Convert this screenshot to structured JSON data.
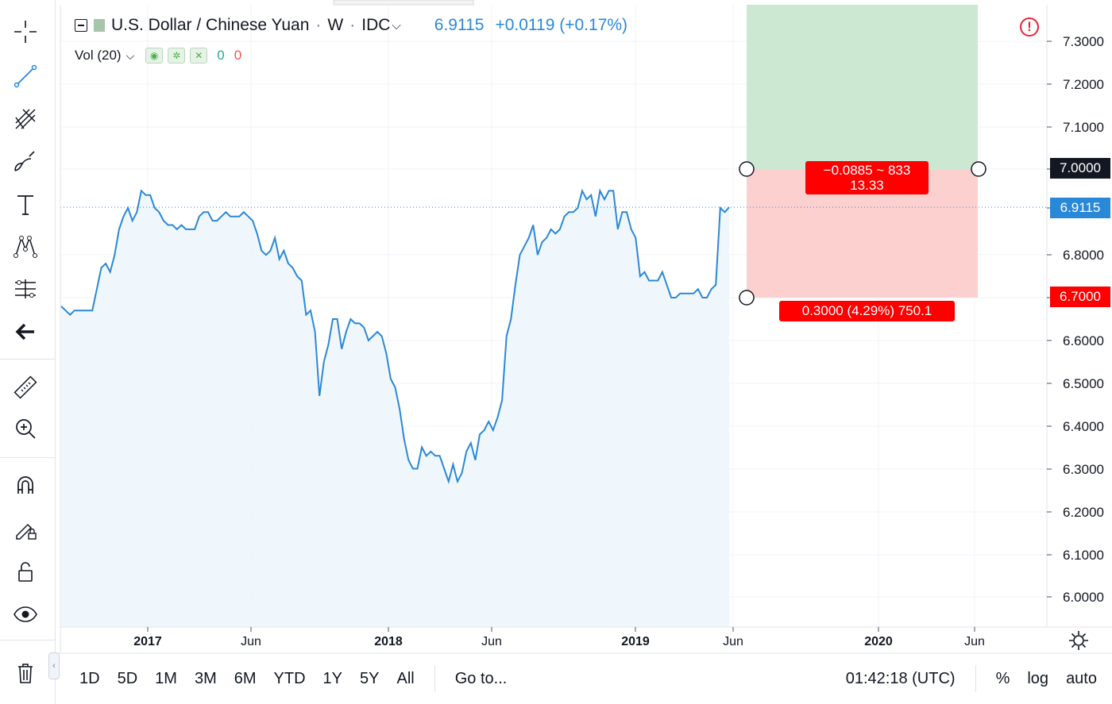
{
  "symbol": {
    "title": "U.S. Dollar / Chinese Yuan",
    "interval": "W",
    "exchange": "IDC",
    "price": "6.9115",
    "change": "+0.0119 (+0.17%)"
  },
  "volume": {
    "label": "Vol (20)",
    "value_up": "0",
    "value_down": "0"
  },
  "colors": {
    "line": "#2a88d8",
    "profit": "#cde8d2",
    "loss": "#fdd0d0",
    "badge": "#ff0000",
    "up": "#26a69a",
    "down": "#ef5350"
  },
  "tools": [
    "crosshair-icon",
    "trend-line-icon",
    "fib-icon",
    "brush-icon",
    "text-icon",
    "pattern-icon",
    "forecast-icon",
    "back-arrow-icon",
    "ruler-icon",
    "zoom-in-icon",
    "magnet-icon",
    "lock-drawing-icon",
    "unlock-icon",
    "eye-icon",
    "trash-icon"
  ],
  "position": {
    "target_label_1": "−0.0885 ~ 833",
    "target_label_2": "13.33",
    "stop_label": "0.3000 (4.29%) 750.1"
  },
  "axis": {
    "price_ticks": [
      "7.3000",
      "7.2000",
      "7.1000",
      "7.0000",
      "6.9115",
      "6.8000",
      "6.7000",
      "6.6000",
      "6.5000",
      "6.4000",
      "6.3000",
      "6.2000",
      "6.1000",
      "6.0000"
    ],
    "tag_entry": "7.0000",
    "tag_last": "6.9115",
    "tag_stop": "6.7000",
    "time_ticks": [
      "2017",
      "Jun",
      "2018",
      "Jun",
      "2019",
      "Jun",
      "2020",
      "Jun"
    ]
  },
  "chart_data": {
    "type": "line",
    "ylim": [
      5.95,
      7.35
    ],
    "values": [
      6.68,
      6.67,
      6.66,
      6.67,
      6.67,
      6.67,
      6.67,
      6.67,
      6.72,
      6.77,
      6.78,
      6.76,
      6.8,
      6.86,
      6.89,
      6.91,
      6.88,
      6.9,
      6.95,
      6.94,
      6.94,
      6.91,
      6.9,
      6.88,
      6.87,
      6.87,
      6.86,
      6.87,
      6.86,
      6.86,
      6.86,
      6.89,
      6.9,
      6.9,
      6.88,
      6.88,
      6.89,
      6.9,
      6.89,
      6.89,
      6.89,
      6.9,
      6.89,
      6.88,
      6.85,
      6.81,
      6.8,
      6.81,
      6.84,
      6.79,
      6.81,
      6.78,
      6.77,
      6.75,
      6.74,
      6.66,
      6.67,
      6.62,
      6.47,
      6.55,
      6.59,
      6.65,
      6.65,
      6.58,
      6.62,
      6.65,
      6.64,
      6.64,
      6.63,
      6.6,
      6.61,
      6.62,
      6.61,
      6.57,
      6.51,
      6.49,
      6.44,
      6.37,
      6.32,
      6.3,
      6.3,
      6.35,
      6.33,
      6.34,
      6.33,
      6.33,
      6.3,
      6.27,
      6.31,
      6.27,
      6.29,
      6.34,
      6.36,
      6.32,
      6.38,
      6.39,
      6.41,
      6.39,
      6.42,
      6.46,
      6.61,
      6.65,
      6.73,
      6.8,
      6.82,
      6.84,
      6.87,
      6.8,
      6.83,
      6.84,
      6.86,
      6.85,
      6.86,
      6.89,
      6.9,
      6.9,
      6.91,
      6.95,
      6.93,
      6.94,
      6.89,
      6.95,
      6.93,
      6.95,
      6.95,
      6.86,
      6.9,
      6.9,
      6.86,
      6.84,
      6.75,
      6.76,
      6.74,
      6.74,
      6.74,
      6.76,
      6.73,
      6.7,
      6.7,
      6.71,
      6.71,
      6.71,
      6.71,
      6.72,
      6.7,
      6.7,
      6.72,
      6.73,
      6.91,
      6.9,
      6.9115
    ],
    "entry": 7.0,
    "target": 7.3,
    "stop": 6.7,
    "grid": true
  },
  "bottom_bar": {
    "ranges": [
      "1D",
      "5D",
      "1M",
      "3M",
      "6M",
      "YTD",
      "1Y",
      "5Y",
      "All"
    ],
    "goto": "Go to...",
    "clock": "01:42:18 (UTC)",
    "percent": "%",
    "log": "log",
    "auto": "auto"
  }
}
